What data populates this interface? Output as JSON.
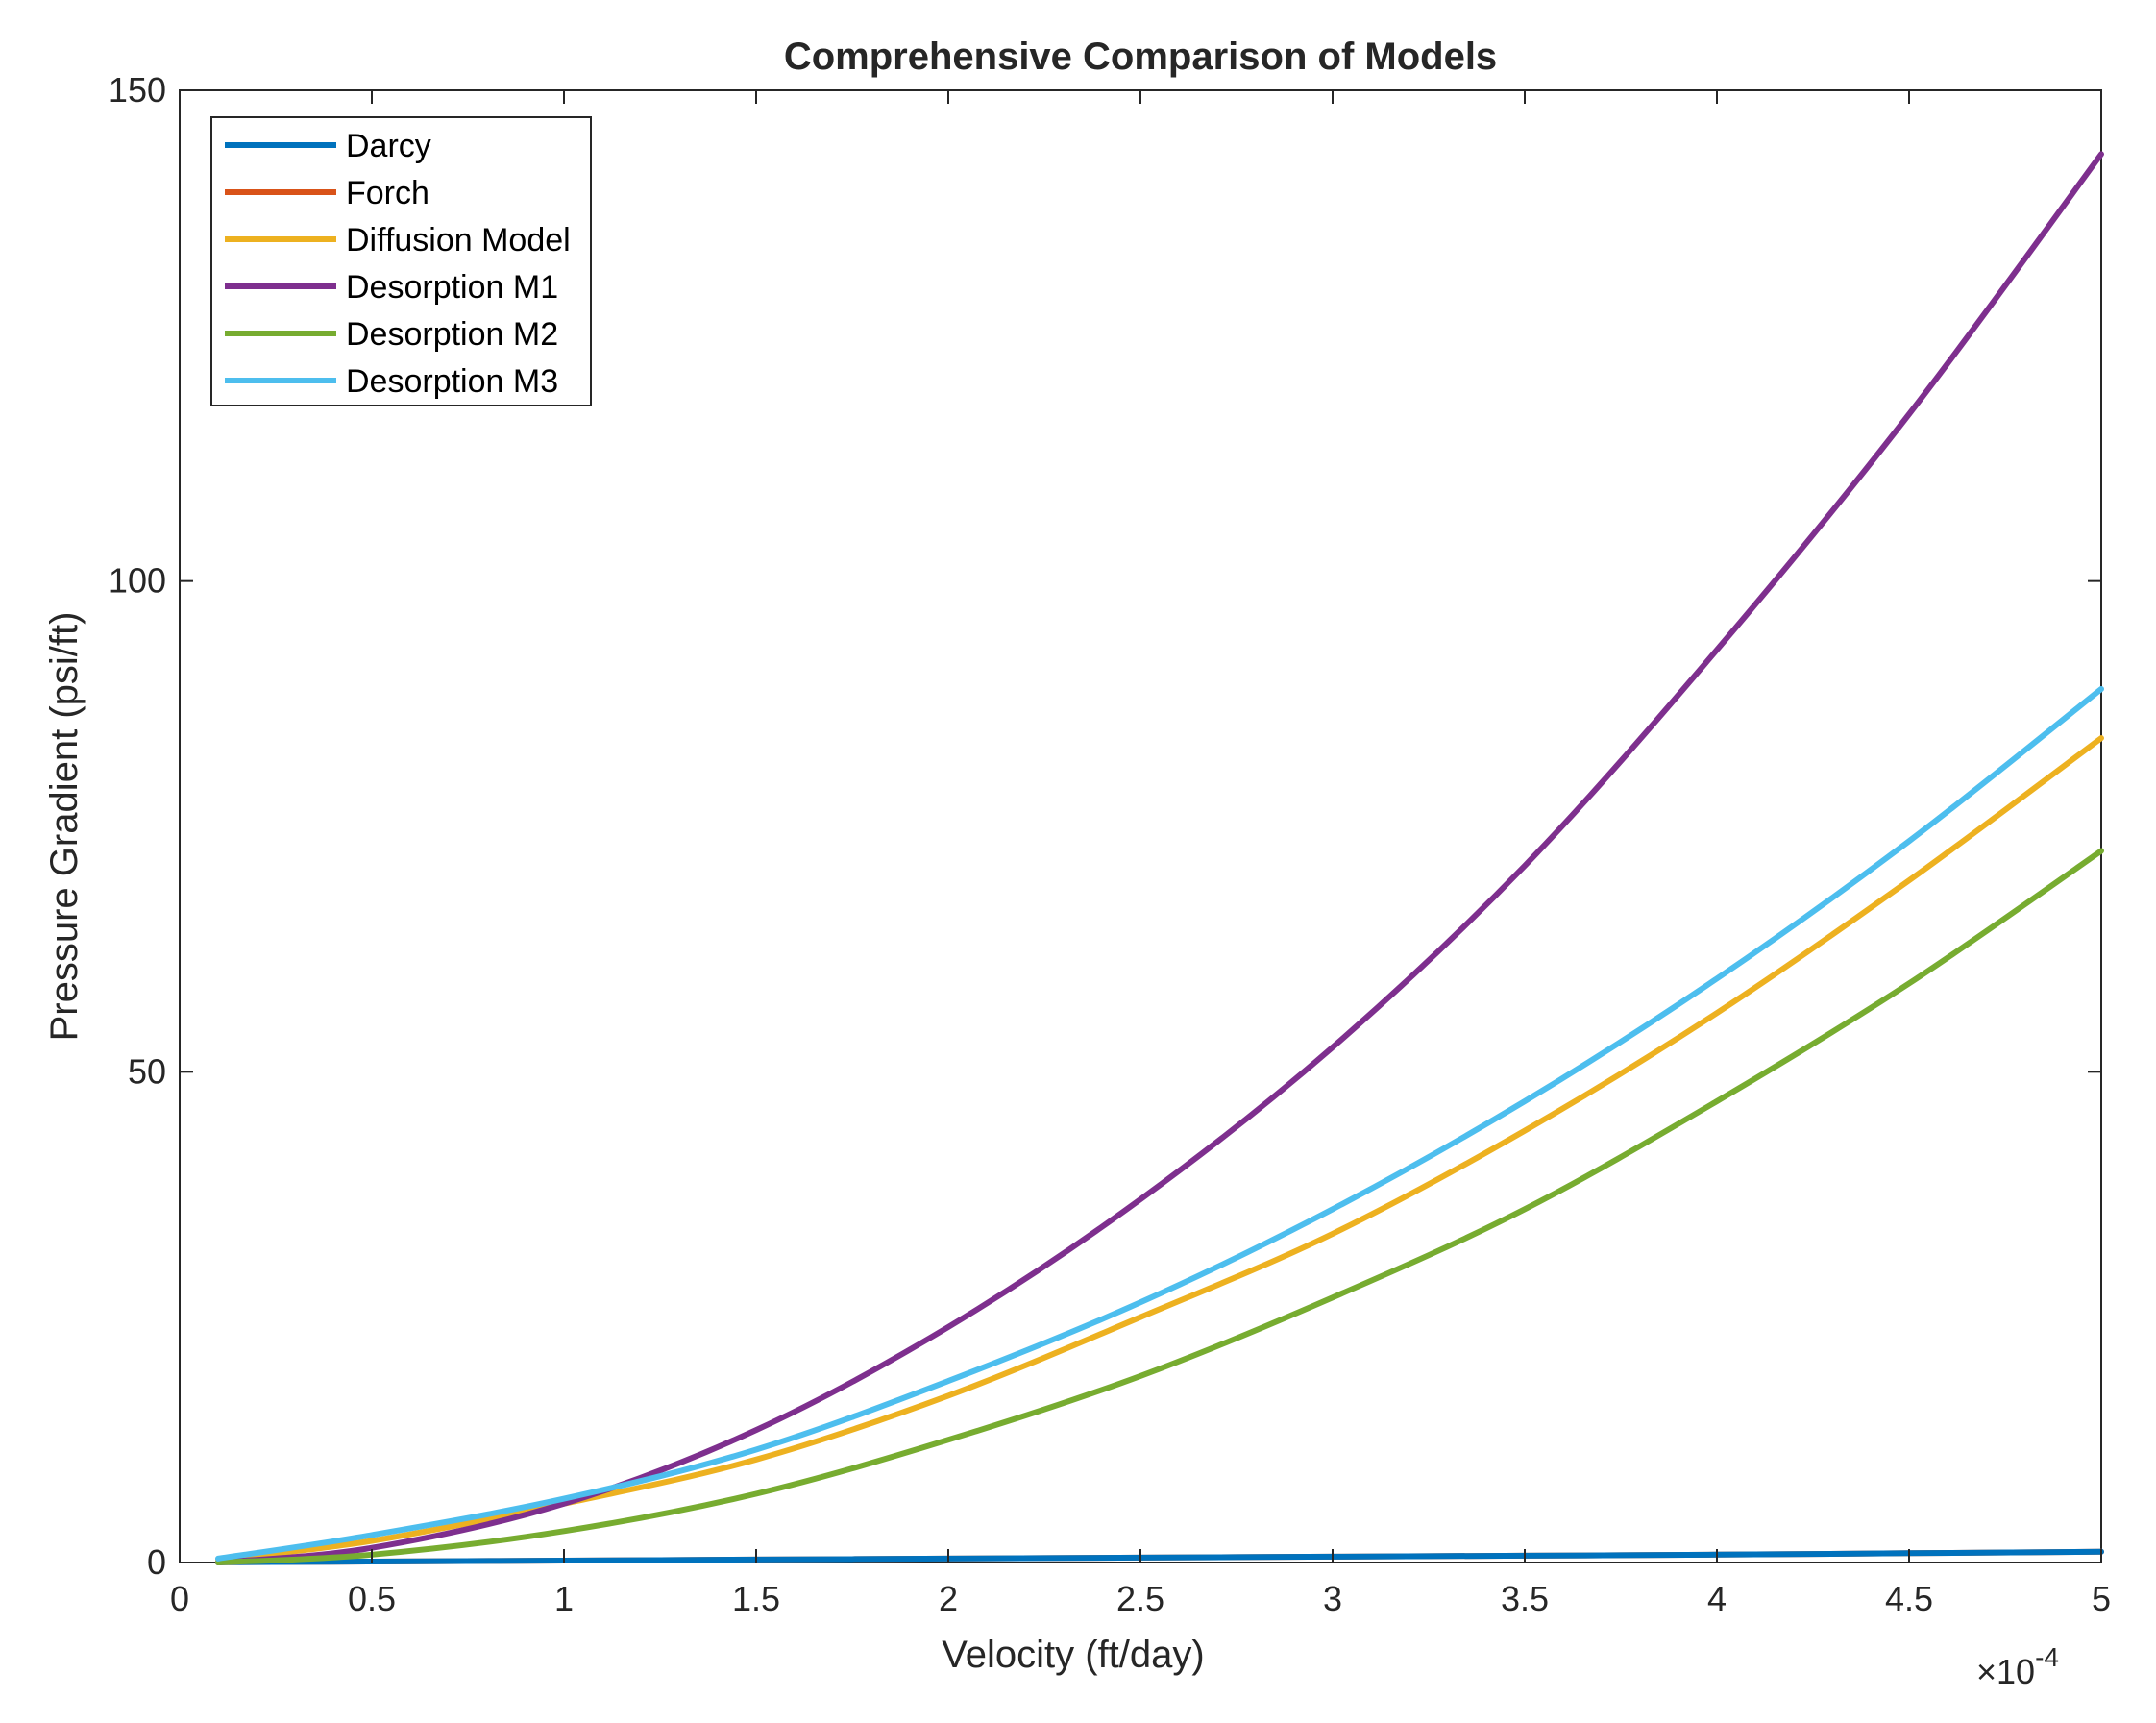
{
  "chart_data": {
    "type": "line",
    "title": "Comprehensive Comparison of Models",
    "xlabel": "Velocity (ft/day)",
    "ylabel": "Pressure Gradient (psi/ft)",
    "x_multiplier": "×10",
    "x_multiplier_exponent": "-4",
    "xlim": [
      0,
      5
    ],
    "ylim": [
      0,
      150
    ],
    "xticks": [
      "0",
      "0.5",
      "1",
      "1.5",
      "2",
      "2.5",
      "3",
      "3.5",
      "4",
      "4.5",
      "5"
    ],
    "yticks": [
      "0",
      "50",
      "100",
      "150"
    ],
    "x": [
      0.1,
      0.5,
      1.0,
      1.5,
      2.0,
      2.5,
      3.0,
      3.5,
      4.0,
      4.5,
      5.0
    ],
    "grid": false,
    "legend_position": "top-left",
    "series": [
      {
        "name": "Darcy",
        "color": "#0072BD",
        "values": [
          0.02,
          0.1,
          0.2,
          0.3,
          0.4,
          0.5,
          0.6,
          0.7,
          0.8,
          0.95,
          1.1
        ]
      },
      {
        "name": "Forch",
        "color": "#D95319",
        "values": [
          0.02,
          0.1,
          0.2,
          0.3,
          0.4,
          0.5,
          0.6,
          0.7,
          0.8,
          0.95,
          1.1
        ]
      },
      {
        "name": "Diffusion Model",
        "color": "#EDB120",
        "values": [
          0.3,
          2.2,
          6.0,
          10.5,
          17.0,
          25.0,
          33.5,
          44.0,
          56.0,
          69.5,
          84.0
        ]
      },
      {
        "name": "Desorption M1",
        "color": "#7E2F8E",
        "values": [
          0.0,
          1.5,
          6.0,
          13.5,
          24.0,
          37.0,
          52.5,
          71.0,
          93.0,
          117.0,
          143.5
        ]
      },
      {
        "name": "Desorption M2",
        "color": "#77AC30",
        "values": [
          0.0,
          0.8,
          3.2,
          7.0,
          12.5,
          19.0,
          27.0,
          36.0,
          47.0,
          59.0,
          72.5
        ]
      },
      {
        "name": "Desorption M3",
        "color": "#4DBEEE",
        "values": [
          0.4,
          2.8,
          6.5,
          11.5,
          18.5,
          26.5,
          36.0,
          47.0,
          59.5,
          73.5,
          89.0
        ]
      }
    ]
  }
}
